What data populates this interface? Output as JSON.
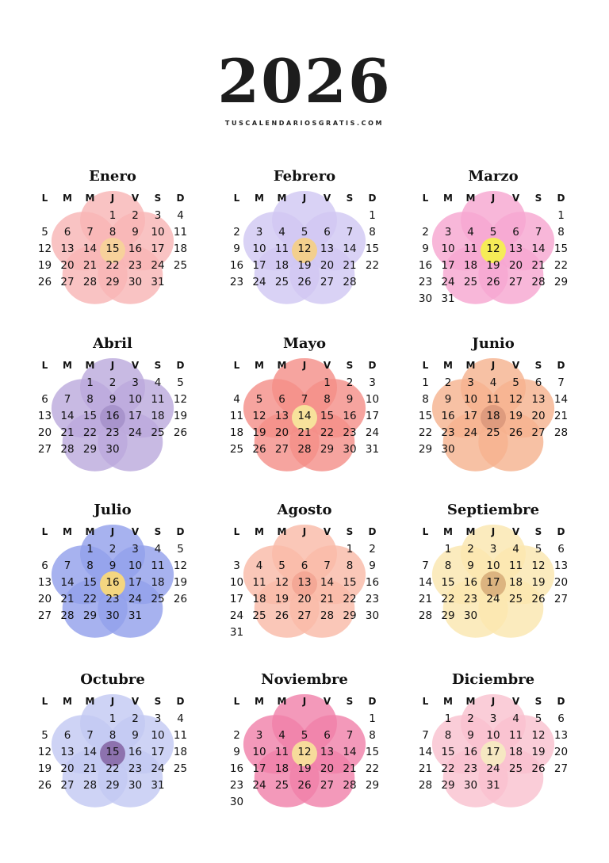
{
  "header": {
    "year": "2026",
    "website": "TUSCALENDARIOSGRATIS.COM"
  },
  "weekdays": [
    "L",
    "M",
    "M",
    "J",
    "V",
    "S",
    "D"
  ],
  "months": [
    {
      "name": "Enero",
      "flower_color": "#f7a8a8",
      "center_color": "#f6c98a",
      "weeks": [
        [
          "",
          "",
          "",
          "1",
          "2",
          "3",
          "4"
        ],
        [
          "5",
          "6",
          "7",
          "8",
          "9",
          "10",
          "11"
        ],
        [
          "12",
          "13",
          "14",
          "15",
          "16",
          "17",
          "18"
        ],
        [
          "19",
          "20",
          "21",
          "22",
          "23",
          "24",
          "25"
        ],
        [
          "26",
          "27",
          "28",
          "29",
          "30",
          "31",
          ""
        ]
      ]
    },
    {
      "name": "Febrero",
      "flower_color": "#c8bdf0",
      "center_color": "#f2c77a",
      "weeks": [
        [
          "",
          "",
          "",
          "",
          "",
          "",
          "1"
        ],
        [
          "2",
          "3",
          "4",
          "5",
          "6",
          "7",
          "8"
        ],
        [
          "9",
          "10",
          "11",
          "12",
          "13",
          "14",
          "15"
        ],
        [
          "16",
          "17",
          "18",
          "19",
          "20",
          "21",
          "22"
        ],
        [
          "23",
          "24",
          "25",
          "26",
          "27",
          "28",
          ""
        ]
      ]
    },
    {
      "name": "Marzo",
      "flower_color": "#f597c9",
      "center_color": "#f5e93a",
      "weeks": [
        [
          "",
          "",
          "",
          "",
          "",
          "",
          "1"
        ],
        [
          "2",
          "3",
          "4",
          "5",
          "6",
          "7",
          "8"
        ],
        [
          "9",
          "10",
          "11",
          "12",
          "13",
          "14",
          "15"
        ],
        [
          "16",
          "17",
          "18",
          "19",
          "20",
          "21",
          "22"
        ],
        [
          "23",
          "24",
          "25",
          "26",
          "27",
          "28",
          "29"
        ],
        [
          "30",
          "31",
          "",
          "",
          "",
          "",
          ""
        ]
      ]
    },
    {
      "name": "Abril",
      "flower_color": "#b09ad6",
      "center_color": "#9a82c4",
      "weeks": [
        [
          "",
          "",
          "1",
          "2",
          "3",
          "4",
          "5"
        ],
        [
          "6",
          "7",
          "8",
          "9",
          "10",
          "11",
          "12"
        ],
        [
          "13",
          "14",
          "15",
          "16",
          "17",
          "18",
          "19"
        ],
        [
          "20",
          "21",
          "22",
          "23",
          "24",
          "25",
          "26"
        ],
        [
          "27",
          "28",
          "29",
          "30",
          "",
          "",
          ""
        ]
      ]
    },
    {
      "name": "Mayo",
      "flower_color": "#f27a72",
      "center_color": "#f6dd8a",
      "weeks": [
        [
          "",
          "",
          "",
          "",
          "1",
          "2",
          "3"
        ],
        [
          "4",
          "5",
          "6",
          "7",
          "8",
          "9",
          "10"
        ],
        [
          "11",
          "12",
          "13",
          "14",
          "15",
          "16",
          "17"
        ],
        [
          "18",
          "19",
          "20",
          "21",
          "22",
          "23",
          "24"
        ],
        [
          "25",
          "26",
          "27",
          "28",
          "29",
          "30",
          "31"
        ]
      ]
    },
    {
      "name": "Junio",
      "flower_color": "#f4a47a",
      "center_color": "#d98a68",
      "weeks": [
        [
          "1",
          "2",
          "3",
          "4",
          "5",
          "6",
          "7"
        ],
        [
          "8",
          "9",
          "10",
          "11",
          "12",
          "13",
          "14"
        ],
        [
          "15",
          "16",
          "17",
          "18",
          "19",
          "20",
          "21"
        ],
        [
          "22",
          "23",
          "24",
          "25",
          "26",
          "27",
          "28"
        ],
        [
          "29",
          "30",
          "",
          "",
          "",
          "",
          ""
        ]
      ]
    },
    {
      "name": "Julio",
      "flower_color": "#7f8fe8",
      "center_color": "#f3cf6a",
      "weeks": [
        [
          "",
          "",
          "1",
          "2",
          "3",
          "4",
          "5"
        ],
        [
          "6",
          "7",
          "8",
          "9",
          "10",
          "11",
          "12"
        ],
        [
          "13",
          "14",
          "15",
          "16",
          "17",
          "18",
          "19"
        ],
        [
          "20",
          "21",
          "22",
          "23",
          "24",
          "25",
          "26"
        ],
        [
          "27",
          "28",
          "29",
          "30",
          "31",
          "",
          ""
        ]
      ]
    },
    {
      "name": "Agosto",
      "flower_color": "#f8ad98",
      "center_color": "#f39a84",
      "weeks": [
        [
          "",
          "",
          "",
          "",
          "",
          "1",
          "2"
        ],
        [
          "3",
          "4",
          "5",
          "6",
          "7",
          "8",
          "9"
        ],
        [
          "10",
          "11",
          "12",
          "13",
          "14",
          "15",
          "16"
        ],
        [
          "17",
          "18",
          "19",
          "20",
          "21",
          "22",
          "23"
        ],
        [
          "24",
          "25",
          "26",
          "27",
          "28",
          "29",
          "30"
        ],
        [
          "31",
          "",
          "",
          "",
          "",
          "",
          ""
        ]
      ]
    },
    {
      "name": "Septiembre",
      "flower_color": "#fbe3a0",
      "center_color": "#d6a86a",
      "weeks": [
        [
          "",
          "1",
          "2",
          "3",
          "4",
          "5",
          "6"
        ],
        [
          "7",
          "8",
          "9",
          "10",
          "11",
          "12",
          "13"
        ],
        [
          "14",
          "15",
          "16",
          "17",
          "18",
          "19",
          "20"
        ],
        [
          "21",
          "22",
          "23",
          "24",
          "25",
          "26",
          "27"
        ],
        [
          "28",
          "29",
          "30",
          "",
          "",
          "",
          ""
        ]
      ]
    },
    {
      "name": "Octubre",
      "flower_color": "#b8bff0",
      "center_color": "#7a5aa0",
      "weeks": [
        [
          "",
          "",
          "",
          "1",
          "2",
          "3",
          "4"
        ],
        [
          "5",
          "6",
          "7",
          "8",
          "9",
          "10",
          "11"
        ],
        [
          "12",
          "13",
          "14",
          "15",
          "16",
          "17",
          "18"
        ],
        [
          "19",
          "20",
          "21",
          "22",
          "23",
          "24",
          "25"
        ],
        [
          "26",
          "27",
          "28",
          "29",
          "30",
          "31",
          ""
        ]
      ]
    },
    {
      "name": "Noviembre",
      "flower_color": "#ee6a9a",
      "center_color": "#f6d58a",
      "weeks": [
        [
          "",
          "",
          "",
          "",
          "",
          "",
          "1"
        ],
        [
          "2",
          "3",
          "4",
          "5",
          "6",
          "7",
          "8"
        ],
        [
          "9",
          "10",
          "11",
          "12",
          "13",
          "14",
          "15"
        ],
        [
          "16",
          "17",
          "18",
          "19",
          "20",
          "21",
          "22"
        ],
        [
          "23",
          "24",
          "25",
          "26",
          "27",
          "28",
          "29"
        ],
        [
          "30",
          "",
          "",
          "",
          "",
          "",
          ""
        ]
      ]
    },
    {
      "name": "Diciembre",
      "flower_color": "#f8b6c6",
      "center_color": "#f5e4b8",
      "weeks": [
        [
          "",
          "1",
          "2",
          "3",
          "4",
          "5",
          "6"
        ],
        [
          "7",
          "8",
          "9",
          "10",
          "11",
          "12",
          "13"
        ],
        [
          "14",
          "15",
          "16",
          "17",
          "18",
          "19",
          "20"
        ],
        [
          "21",
          "22",
          "23",
          "24",
          "25",
          "26",
          "27"
        ],
        [
          "28",
          "29",
          "30",
          "31",
          "",
          "",
          ""
        ]
      ]
    }
  ]
}
